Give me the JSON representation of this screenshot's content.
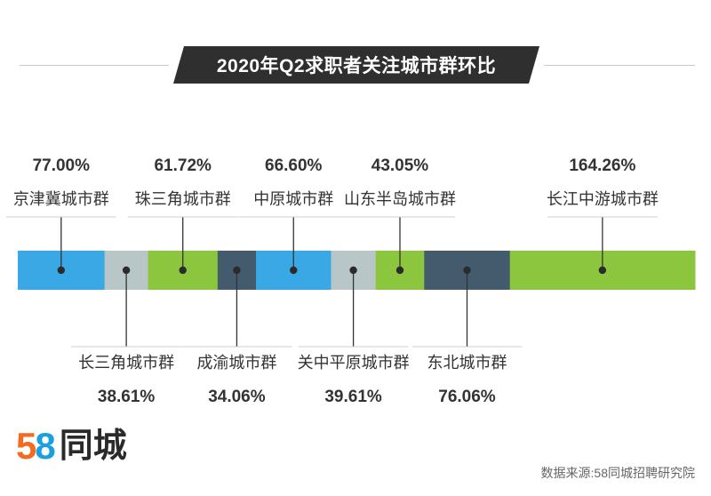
{
  "title": "2020年Q2求职者关注城市群环比",
  "source": "数据来源:58同城招聘研究院",
  "logo": {
    "digit_five": "5",
    "digit_eight": "8",
    "text": "同城"
  },
  "colors": {
    "title_bg": "#2f2f2f",
    "label_text": "#333333",
    "value_text": "#333333"
  },
  "chart_data": {
    "type": "bar",
    "categories": [
      "京津冀城市群",
      "长三角城市群",
      "珠三角城市群",
      "成渝城市群",
      "中原城市群",
      "关中平原城市群",
      "山东半岛城市群",
      "东北城市群",
      "长江中游城市群"
    ],
    "values": [
      77.0,
      38.61,
      61.72,
      34.06,
      66.6,
      39.61,
      43.05,
      76.06,
      164.26
    ],
    "value_labels": [
      "77.00%",
      "38.61%",
      "61.72%",
      "34.06%",
      "66.60%",
      "39.61%",
      "43.05%",
      "76.06%",
      "164.26%"
    ],
    "colors": [
      "#3aa8e4",
      "#b9c6c7",
      "#8cc63e",
      "#445b6e",
      "#3aa8e4",
      "#b9c6c7",
      "#8cc63e",
      "#445b6e",
      "#8cc63e"
    ],
    "label_side": [
      "top",
      "bottom",
      "top",
      "bottom",
      "top",
      "bottom",
      "top",
      "bottom",
      "top"
    ],
    "unit": "%"
  }
}
